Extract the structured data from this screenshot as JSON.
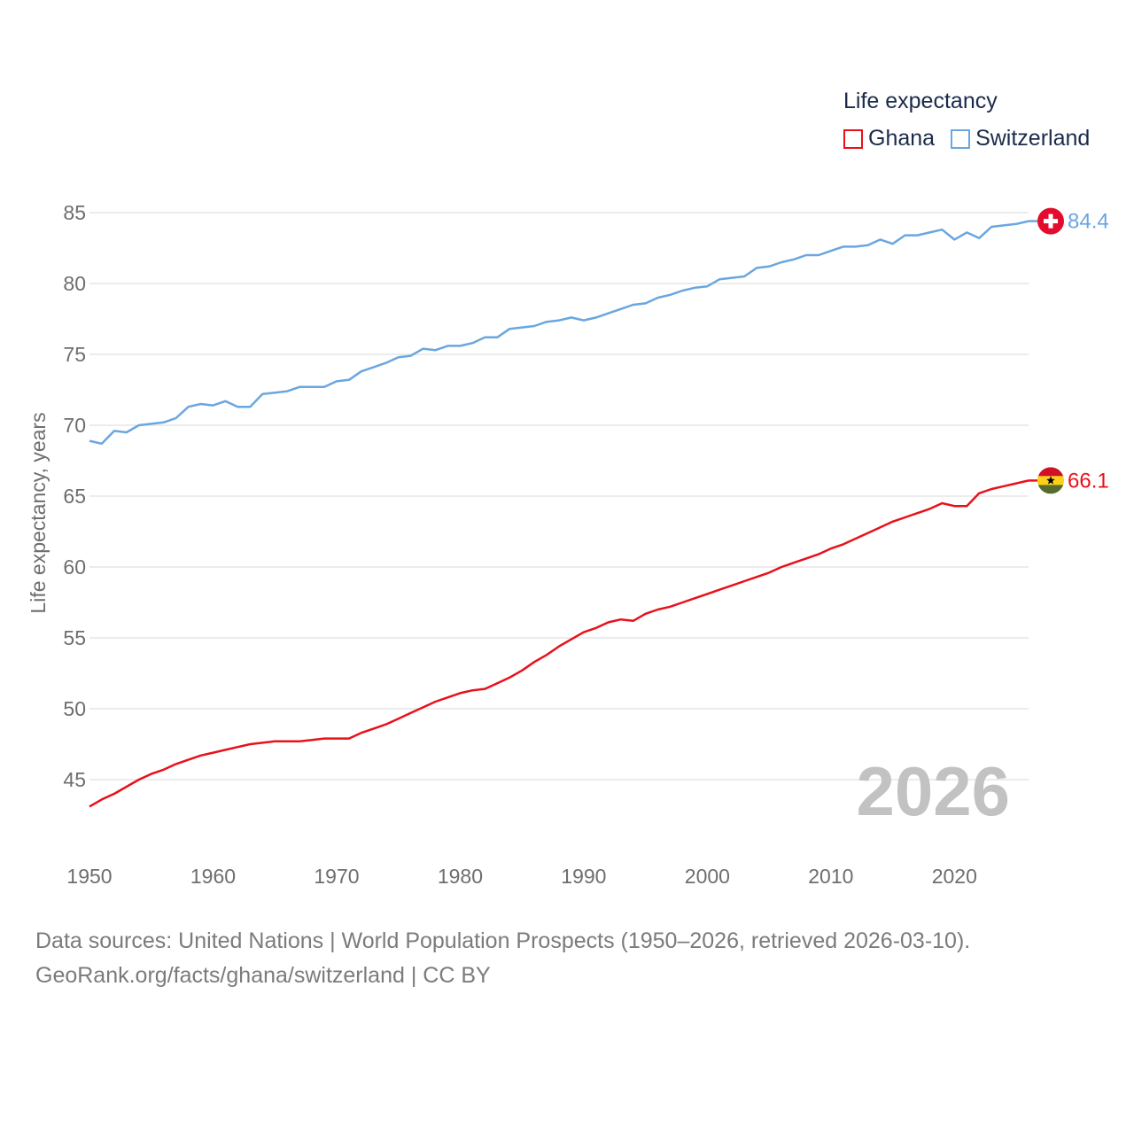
{
  "legend": {
    "title": "Life expectancy",
    "items": [
      {
        "label": "Ghana",
        "color": "#e8111a"
      },
      {
        "label": "Switzerland",
        "color": "#6aa6e0"
      }
    ]
  },
  "footer": {
    "line1": "Data sources: United Nations | World Population Prospects (1950–2026, retrieved 2026-03-10).",
    "line2": "GeoRank.org/facts/ghana/switzerland | CC BY"
  },
  "chart_data": {
    "type": "line",
    "title": "Life expectancy",
    "xlabel": "",
    "ylabel": "Life expectancy, years",
    "current_year": "2026",
    "xlim": [
      1950,
      2026
    ],
    "ylim": [
      41.5,
      86
    ],
    "xticks": [
      1950,
      1960,
      1970,
      1980,
      1990,
      2000,
      2010,
      2020
    ],
    "yticks": [
      45,
      50,
      55,
      60,
      65,
      70,
      75,
      80,
      85
    ],
    "grid": true,
    "legend_position": "top-right",
    "x": [
      1950,
      1951,
      1952,
      1953,
      1954,
      1955,
      1956,
      1957,
      1958,
      1959,
      1960,
      1961,
      1962,
      1963,
      1964,
      1965,
      1966,
      1967,
      1968,
      1969,
      1970,
      1971,
      1972,
      1973,
      1974,
      1975,
      1976,
      1977,
      1978,
      1979,
      1980,
      1981,
      1982,
      1983,
      1984,
      1985,
      1986,
      1987,
      1988,
      1989,
      1990,
      1991,
      1992,
      1993,
      1994,
      1995,
      1996,
      1997,
      1998,
      1999,
      2000,
      2001,
      2002,
      2003,
      2004,
      2005,
      2006,
      2007,
      2008,
      2009,
      2010,
      2011,
      2012,
      2013,
      2014,
      2015,
      2016,
      2017,
      2018,
      2019,
      2020,
      2021,
      2022,
      2023,
      2024,
      2025,
      2026
    ],
    "series": [
      {
        "name": "Ghana",
        "color": "#e8111a",
        "end_label": "66.1",
        "flag": "ghana-flag",
        "values": [
          43.1,
          43.6,
          44.0,
          44.5,
          45.0,
          45.4,
          45.7,
          46.1,
          46.4,
          46.7,
          46.9,
          47.1,
          47.3,
          47.5,
          47.6,
          47.7,
          47.7,
          47.7,
          47.8,
          47.9,
          47.9,
          47.9,
          48.3,
          48.6,
          48.9,
          49.3,
          49.7,
          50.1,
          50.5,
          50.8,
          51.1,
          51.3,
          51.4,
          51.8,
          52.2,
          52.7,
          53.3,
          53.8,
          54.4,
          54.9,
          55.4,
          55.7,
          56.1,
          56.3,
          56.2,
          56.7,
          57.0,
          57.2,
          57.5,
          57.8,
          58.1,
          58.4,
          58.7,
          59.0,
          59.3,
          59.6,
          60.0,
          60.3,
          60.6,
          60.9,
          61.3,
          61.6,
          62.0,
          62.4,
          62.8,
          63.2,
          63.5,
          63.8,
          64.1,
          64.5,
          64.3,
          64.3,
          65.2,
          65.5,
          65.7,
          65.9,
          66.1
        ]
      },
      {
        "name": "Switzerland",
        "color": "#6aa6e0",
        "end_label": "84.4",
        "flag": "switzerland-flag",
        "values": [
          68.9,
          68.7,
          69.6,
          69.5,
          70.0,
          70.1,
          70.2,
          70.5,
          71.3,
          71.5,
          71.4,
          71.7,
          71.3,
          71.3,
          72.2,
          72.3,
          72.4,
          72.7,
          72.7,
          72.7,
          73.1,
          73.2,
          73.8,
          74.1,
          74.4,
          74.8,
          74.9,
          75.4,
          75.3,
          75.6,
          75.6,
          75.8,
          76.2,
          76.2,
          76.8,
          76.9,
          77.0,
          77.3,
          77.4,
          77.6,
          77.4,
          77.6,
          77.9,
          78.2,
          78.5,
          78.6,
          79.0,
          79.2,
          79.5,
          79.7,
          79.8,
          80.3,
          80.4,
          80.5,
          81.1,
          81.2,
          81.5,
          81.7,
          82.0,
          82.0,
          82.3,
          82.6,
          82.6,
          82.7,
          83.1,
          82.8,
          83.4,
          83.4,
          83.6,
          83.8,
          83.1,
          83.6,
          83.2,
          84.0,
          84.1,
          84.2,
          84.4
        ]
      }
    ]
  }
}
